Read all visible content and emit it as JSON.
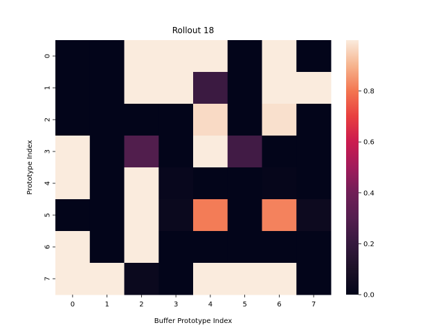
{
  "chart_data": {
    "type": "heatmap",
    "title": "Rollout 18",
    "xlabel": "Buffer Prototype Index",
    "ylabel": "Prototype Index",
    "x_categories": [
      "0",
      "1",
      "2",
      "3",
      "4",
      "5",
      "6",
      "7"
    ],
    "y_categories": [
      "0",
      "1",
      "2",
      "3",
      "4",
      "5",
      "6",
      "7"
    ],
    "values": [
      [
        0.0,
        0.0,
        1.0,
        1.0,
        1.0,
        0.0,
        1.0,
        0.0
      ],
      [
        0.0,
        0.0,
        1.0,
        1.0,
        0.22,
        0.0,
        1.0,
        1.0
      ],
      [
        0.0,
        0.0,
        0.0,
        0.0,
        0.97,
        0.0,
        0.98,
        0.0
      ],
      [
        1.0,
        0.0,
        0.29,
        0.0,
        1.0,
        0.24,
        0.0,
        0.0
      ],
      [
        1.0,
        0.0,
        1.0,
        0.02,
        0.0,
        0.0,
        0.01,
        0.0
      ],
      [
        0.0,
        0.0,
        1.0,
        0.03,
        0.81,
        0.0,
        0.82,
        0.04
      ],
      [
        1.0,
        0.0,
        1.0,
        0.0,
        0.0,
        0.0,
        0.0,
        0.0
      ],
      [
        1.0,
        1.0,
        0.03,
        0.0,
        1.0,
        1.0,
        1.0,
        0.0
      ]
    ],
    "colorbar": {
      "colormap": "rocket",
      "range": [
        0,
        1
      ],
      "ticks": [
        "0.0",
        "0.2",
        "0.4",
        "0.6",
        "0.8"
      ],
      "tick_values": [
        0.0,
        0.2,
        0.4,
        0.6,
        0.8
      ]
    },
    "grid": false,
    "legend": "colorbar-right"
  }
}
